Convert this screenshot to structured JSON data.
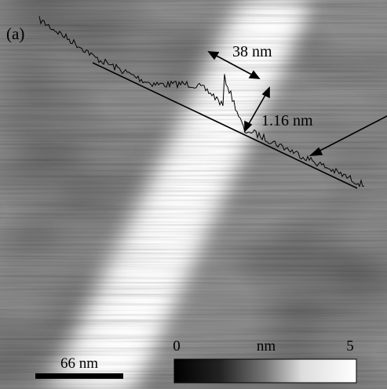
{
  "panel_label": "(a)",
  "annotations": [
    "38 nm",
    "1.16 nm"
  ],
  "scale_bar": "66 nm",
  "colorbar": {
    "min_label": "0",
    "unit": "nm",
    "max_label": "5"
  }
}
